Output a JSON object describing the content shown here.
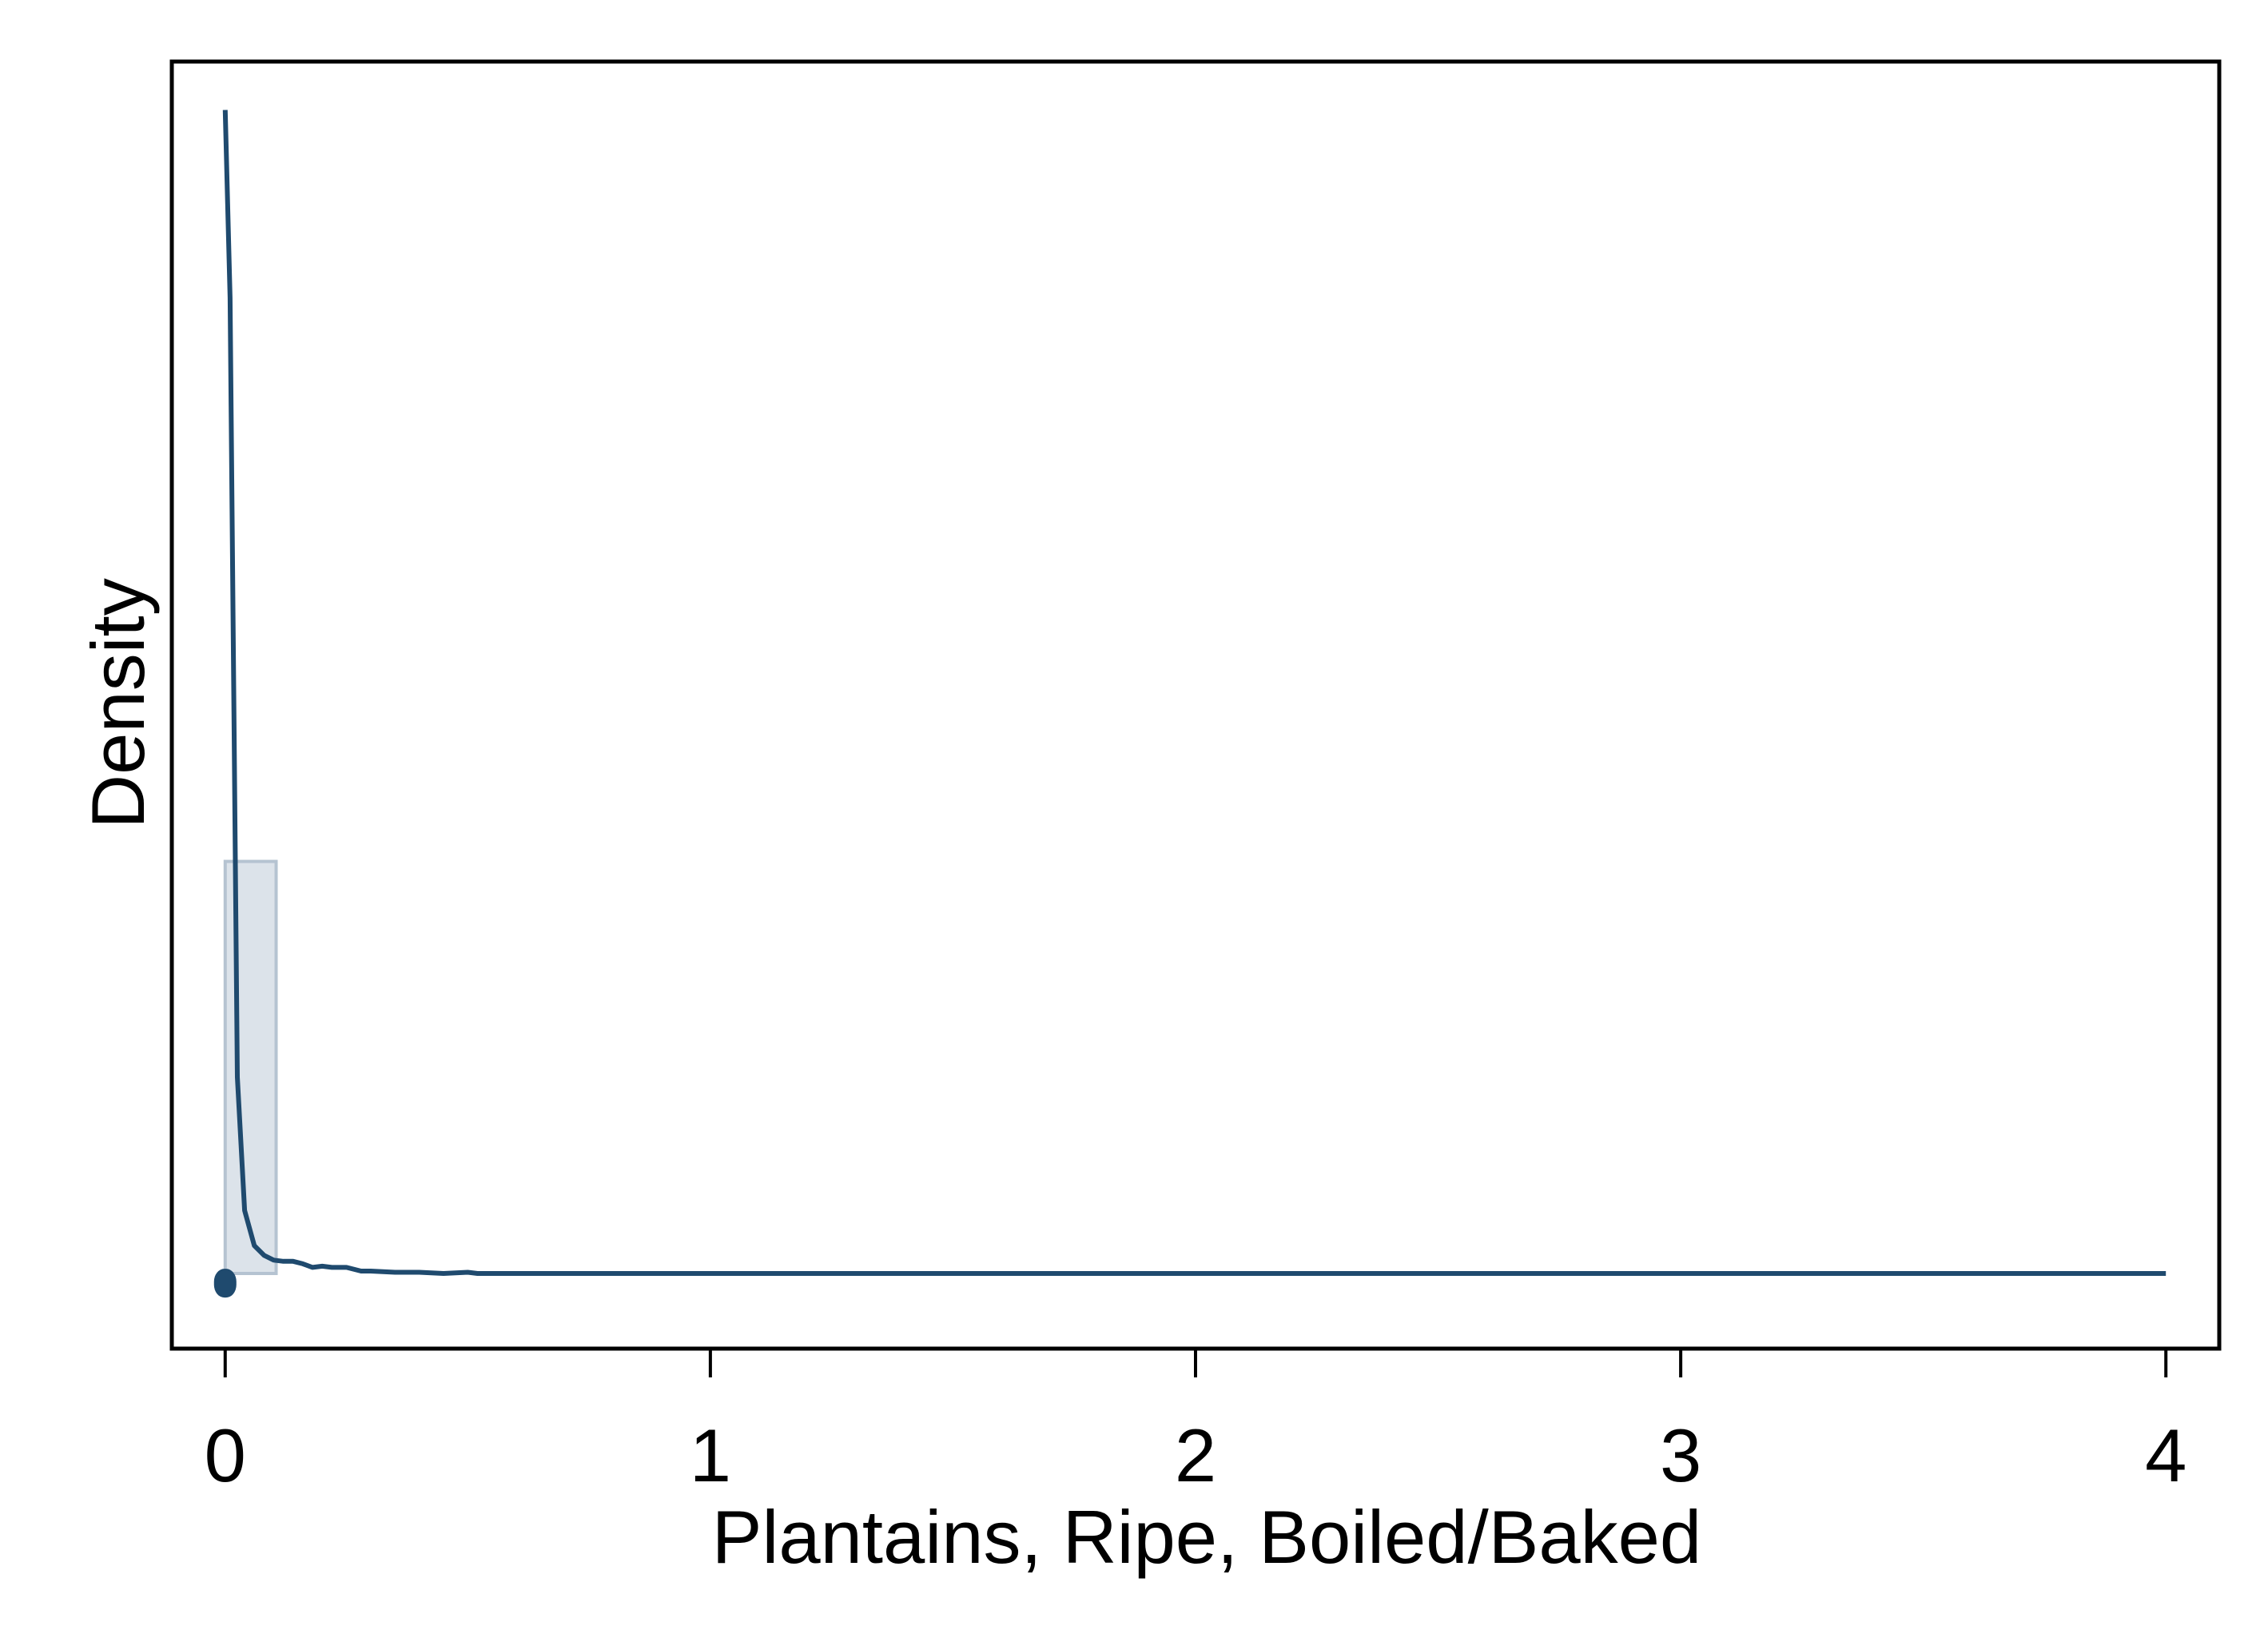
{
  "chart_data": {
    "type": "histogram",
    "title": "",
    "xlabel": "Plantains, Ripe, Boiled/Baked",
    "ylabel": "Density",
    "xlim": [
      -0.11,
      4.11
    ],
    "ylim": [
      -0.62,
      10.0
    ],
    "x_ticks": [
      0,
      1,
      2,
      3,
      4
    ],
    "x_tick_labels": [
      "0",
      "1",
      "2",
      "3",
      "4"
    ],
    "y_ticks_labeled": false,
    "grid": false,
    "histogram": {
      "bins": [
        {
          "x0": 0.0,
          "x1": 0.105,
          "density": 3.4
        }
      ],
      "fill": "#dce3ea",
      "stroke": "#b5c3d1"
    },
    "kde": {
      "color": "#1f4a6e",
      "points": [
        [
          0.0,
          9.6
        ],
        [
          0.01,
          8.05
        ],
        [
          0.025,
          1.62
        ],
        [
          0.04,
          0.52
        ],
        [
          0.06,
          0.23
        ],
        [
          0.08,
          0.15
        ],
        [
          0.1,
          0.11
        ],
        [
          0.12,
          0.1
        ],
        [
          0.14,
          0.1
        ],
        [
          0.16,
          0.08
        ],
        [
          0.18,
          0.05
        ],
        [
          0.2,
          0.06
        ],
        [
          0.22,
          0.05
        ],
        [
          0.25,
          0.05
        ],
        [
          0.28,
          0.02
        ],
        [
          0.3,
          0.02
        ],
        [
          0.35,
          0.01
        ],
        [
          0.4,
          0.01
        ],
        [
          0.45,
          0.0
        ],
        [
          0.5,
          0.01
        ],
        [
          0.52,
          0.0
        ],
        [
          0.6,
          0.0
        ],
        [
          0.7,
          0.0
        ],
        [
          0.8,
          0.0
        ],
        [
          1.0,
          0.0
        ],
        [
          1.5,
          0.0
        ],
        [
          2.0,
          0.0
        ],
        [
          2.5,
          0.0
        ],
        [
          3.0,
          0.0
        ],
        [
          3.5,
          0.0
        ],
        [
          4.0,
          0.0
        ]
      ]
    },
    "marker": {
      "x": 0.0,
      "y": -0.08,
      "color": "#1f4a6e"
    }
  }
}
